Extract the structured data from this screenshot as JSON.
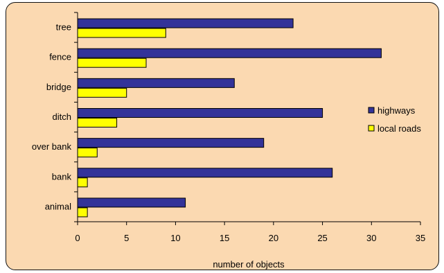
{
  "chart_data": {
    "type": "bar",
    "orientation": "horizontal",
    "categories": [
      "tree",
      "fence",
      "bridge",
      "ditch",
      "over bank",
      "bank",
      "animal"
    ],
    "series": [
      {
        "name": "highways",
        "values": [
          22,
          31,
          16,
          25,
          19,
          26,
          11
        ],
        "color": "#333399"
      },
      {
        "name": "local roads",
        "values": [
          9,
          7,
          5,
          4,
          2,
          1,
          1
        ],
        "color": "#ffff00"
      }
    ],
    "title": "",
    "xlabel": "number of objects",
    "ylabel": "",
    "xlim": [
      0,
      35
    ],
    "xticks": [
      0,
      5,
      10,
      15,
      20,
      25,
      30,
      35
    ],
    "grid": false,
    "legend_position": "right",
    "background_color": "#fbd9b1"
  }
}
